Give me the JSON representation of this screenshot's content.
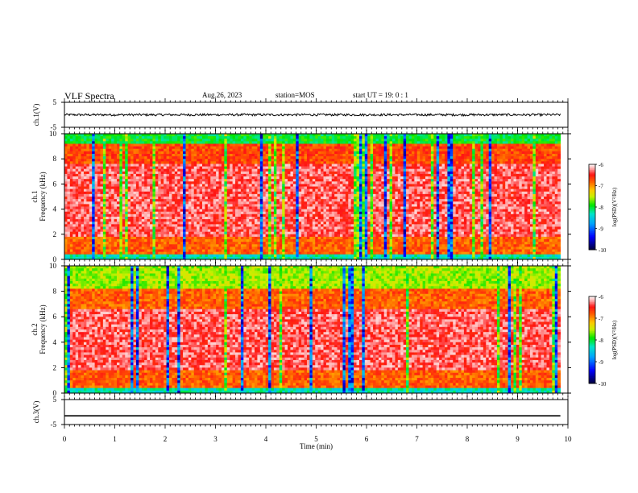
{
  "header": {
    "title": "VLF Spectra",
    "date": "Aug.26, 2023",
    "station": "station=MOS",
    "start_ut": "start  UT =   19: 0  : 1"
  },
  "chart_data": [
    {
      "type": "line",
      "ylabel": "ch.1(V)",
      "ylim": [
        -5,
        5
      ],
      "yticks": [
        "5",
        "-5"
      ],
      "x_range": [
        0,
        10
      ],
      "series": [
        {
          "description_level": 0
        }
      ]
    },
    {
      "type": "heatmap",
      "ylabel": "ch.1\nFrequency (kHz)",
      "ylabel_line1": "ch.1",
      "ylabel_line2": "Frequency (kHz)",
      "ylim": [
        0,
        10
      ],
      "yticks": [
        "0",
        "2",
        "4",
        "6",
        "8",
        "10"
      ],
      "colorbar": {
        "label": "log(PSD)(V²/Hz)",
        "ticks": [
          "-6",
          "-7",
          "-8",
          "-9",
          "-10"
        ],
        "range": [
          -10,
          -6
        ]
      }
    },
    {
      "type": "heatmap",
      "ylabel": "ch.2\nFrequency (kHz)",
      "ylabel_line1": "ch.2",
      "ylabel_line2": "Frequency (kHz)",
      "ylim": [
        0,
        10
      ],
      "yticks": [
        "0",
        "2",
        "4",
        "6",
        "8",
        "10"
      ],
      "colorbar": {
        "label": "log(PSD)(V²/Hz)",
        "ticks": [
          "-6",
          "-7",
          "-8",
          "-9",
          "-10"
        ],
        "range": [
          -10,
          -6
        ]
      }
    },
    {
      "type": "line",
      "ylabel": "ch.3(V)",
      "ylim": [
        -5,
        5
      ],
      "yticks": [
        "5",
        "-5"
      ],
      "x_range": [
        0,
        10
      ],
      "series": [
        {
          "level": -1.5
        }
      ]
    }
  ],
  "xaxis": {
    "label": "Time  (min)",
    "ticks": [
      "0",
      "1",
      "2",
      "3",
      "4",
      "5",
      "6",
      "7",
      "8",
      "9",
      "10"
    ],
    "range": [
      0,
      10
    ]
  },
  "colors": {
    "low": "#000080",
    "mid": "#00ff00",
    "high": "#ff0000",
    "max": "#ffffff"
  }
}
